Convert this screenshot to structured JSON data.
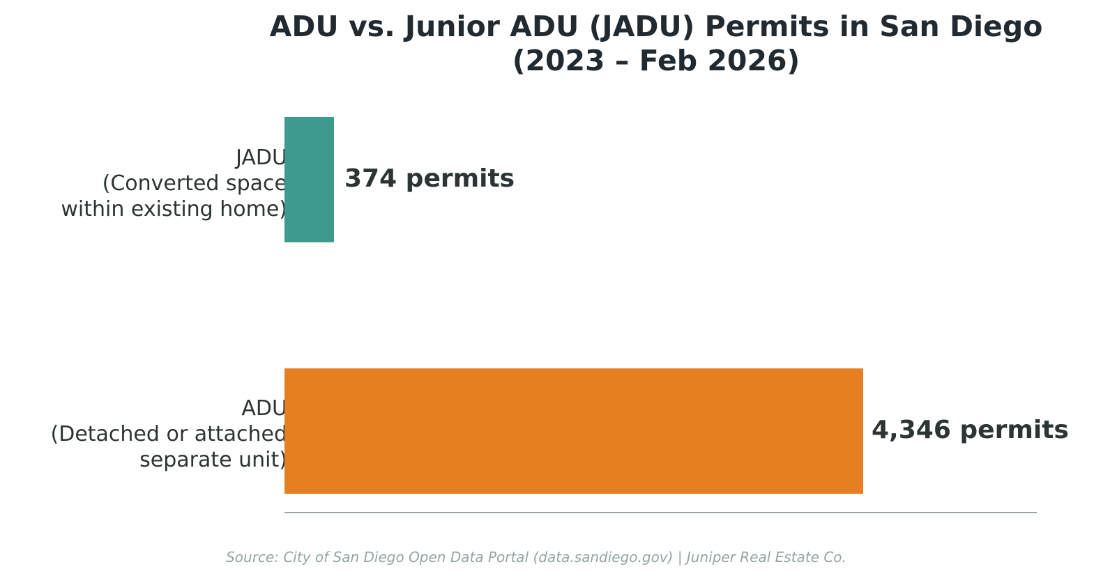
{
  "chart": {
    "title_line1": "ADU vs. Junior ADU (JADU) Permits in San Diego",
    "title_line2": "(2023 – Feb 2026)",
    "source": "Source: City of San Diego Open Data Portal (data.sandiego.gov) | Juniper Real Estate Co.",
    "bars": [
      {
        "label_line1": "JADU",
        "label_line2": "(Converted space",
        "label_line3": "within existing home)",
        "value_label": "374 permits",
        "color": "#3d9a8e"
      },
      {
        "label_line1": "ADU",
        "label_line2": "(Detached or attached",
        "label_line3": "separate unit)",
        "value_label": "4,346 permits",
        "color": "#e67e22"
      }
    ]
  },
  "chart_data": {
    "type": "bar",
    "orientation": "horizontal",
    "title": "ADU vs. Junior ADU (JADU) Permits in San Diego (2023 – Feb 2026)",
    "categories": [
      "JADU (Converted space within existing home)",
      "ADU (Detached or attached separate unit)"
    ],
    "values": [
      374,
      4346
    ],
    "value_labels": [
      "374 permits",
      "4,346 permits"
    ],
    "colors": [
      "#3d9a8e",
      "#e67e22"
    ],
    "xlabel": "",
    "ylabel": "",
    "xlim": [
      0,
      5650
    ],
    "grid": false,
    "legend": null,
    "x_ticks_visible": false,
    "annotation": "Source: City of San Diego Open Data Portal (data.sandiego.gov) | Juniper Real Estate Co."
  }
}
